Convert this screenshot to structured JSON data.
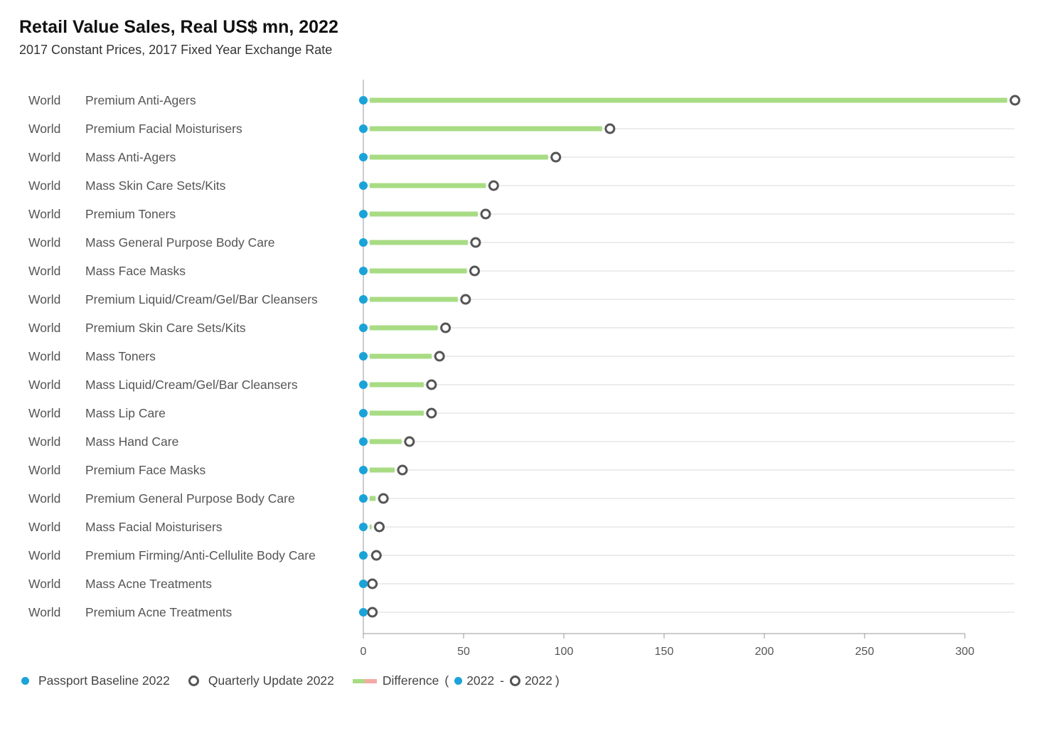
{
  "header": {
    "title": "Retail Value Sales, Real US$ mn, 2022",
    "subtitle": "2017 Constant Prices, 2017 Fixed Year Exchange Rate"
  },
  "colors": {
    "baseline": "#1aa3d9",
    "update": "#555555",
    "diff_positive": "#a8dc84",
    "diff_negative": "#f4aaa3",
    "grid": "#d9d9d9",
    "axis": "#999999"
  },
  "chart_data": {
    "type": "dot-plot",
    "orientation": "horizontal",
    "rows": [
      {
        "geo": "World",
        "category": "Premium Anti-Agers",
        "baseline": 0,
        "update": 325
      },
      {
        "geo": "World",
        "category": "Premium Facial Moisturisers",
        "baseline": 0,
        "update": 123
      },
      {
        "geo": "World",
        "category": "Mass Anti-Agers",
        "baseline": 0,
        "update": 96
      },
      {
        "geo": "World",
        "category": "Mass Skin Care Sets/Kits",
        "baseline": 0,
        "update": 65
      },
      {
        "geo": "World",
        "category": "Premium Toners",
        "baseline": 0,
        "update": 61
      },
      {
        "geo": "World",
        "category": "Mass General Purpose Body Care",
        "baseline": 0,
        "update": 56
      },
      {
        "geo": "World",
        "category": "Mass Face Masks",
        "baseline": 0,
        "update": 55.5
      },
      {
        "geo": "World",
        "category": "Premium Liquid/Cream/Gel/Bar Cleansers",
        "baseline": 0,
        "update": 51
      },
      {
        "geo": "World",
        "category": "Premium Skin Care Sets/Kits",
        "baseline": 0,
        "update": 41
      },
      {
        "geo": "World",
        "category": "Mass Toners",
        "baseline": 0,
        "update": 38
      },
      {
        "geo": "World",
        "category": "Mass Liquid/Cream/Gel/Bar Cleansers",
        "baseline": 0,
        "update": 34
      },
      {
        "geo": "World",
        "category": "Mass Lip Care",
        "baseline": 0,
        "update": 34
      },
      {
        "geo": "World",
        "category": "Mass Hand Care",
        "baseline": 0,
        "update": 23
      },
      {
        "geo": "World",
        "category": "Premium Face Masks",
        "baseline": 0,
        "update": 19.5
      },
      {
        "geo": "World",
        "category": "Premium General Purpose Body Care",
        "baseline": 0,
        "update": 10
      },
      {
        "geo": "World",
        "category": "Mass Facial Moisturisers",
        "baseline": 0,
        "update": 8
      },
      {
        "geo": "World",
        "category": "Premium Firming/Anti-Cellulite Body Care",
        "baseline": 0,
        "update": 6.5
      },
      {
        "geo": "World",
        "category": "Mass Acne Treatments",
        "baseline": 0,
        "update": 4.5
      },
      {
        "geo": "World",
        "category": "Premium Acne Treatments",
        "baseline": 0,
        "update": 4.5
      }
    ],
    "x_ticks": [
      0,
      50,
      100,
      150,
      200,
      250,
      300
    ],
    "xlim": [
      0,
      325
    ],
    "grid": "horizontal",
    "legend": {
      "position": "bottom-left",
      "baseline_label": "Passport Baseline 2022",
      "update_label": "Quarterly Update 2022",
      "difference_label": "Difference",
      "paren_open": "(",
      "year_a": "2022",
      "dash": "-",
      "year_b": "2022",
      "paren_close": ")"
    }
  }
}
